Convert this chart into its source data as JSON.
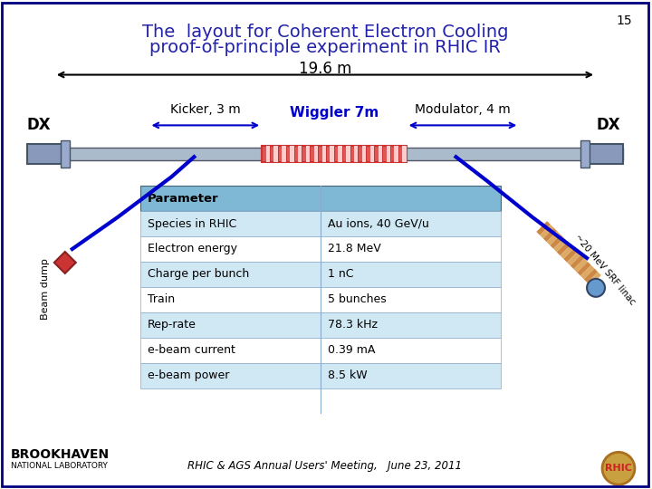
{
  "title_line1": "The  layout for Coherent Electron Cooling",
  "title_line2": "proof-of-principle experiment in RHIC IR",
  "title_color": "#2222aa",
  "slide_number": "15",
  "distance_label": "19.6 m",
  "dx_label": "DX",
  "kicker_label": "Kicker, 3 m",
  "wiggler_label": "Wiggler 7m",
  "modulator_label": "Modulator, 4 m",
  "beam_dump_label": "Beam dump",
  "srf_linac_label": "~20 MeV SRF linac",
  "footer_text": "RHIC & AGS Annual Users' Meeting,   June 23, 2011",
  "table_headers": [
    "Parameter",
    ""
  ],
  "table_rows": [
    [
      "Species in RHIC",
      "Au ions, 40 GeV/u"
    ],
    [
      "Electron energy",
      "21.8 MeV"
    ],
    [
      "Charge per bunch",
      "1 nC"
    ],
    [
      "Train",
      "5 bunches"
    ],
    [
      "Rep-rate",
      "78.3 kHz"
    ],
    [
      "e-beam current",
      "0.39 mA"
    ],
    [
      "e-beam power",
      "8.5 kW"
    ]
  ],
  "table_header_bg": "#7fb8d4",
  "table_row_bg_odd": "#d0e8f4",
  "table_row_bg_even": "#ffffff",
  "background_color": "#ffffff",
  "border_color": "#000080",
  "beam_line_color": "#000000",
  "electron_beam_color": "#0000cc",
  "wiggler_color_main": "#cc4444",
  "wiggler_stripe_color": "#ffffff",
  "pipe_color": "#8899aa",
  "srf_color": "#cc8844"
}
